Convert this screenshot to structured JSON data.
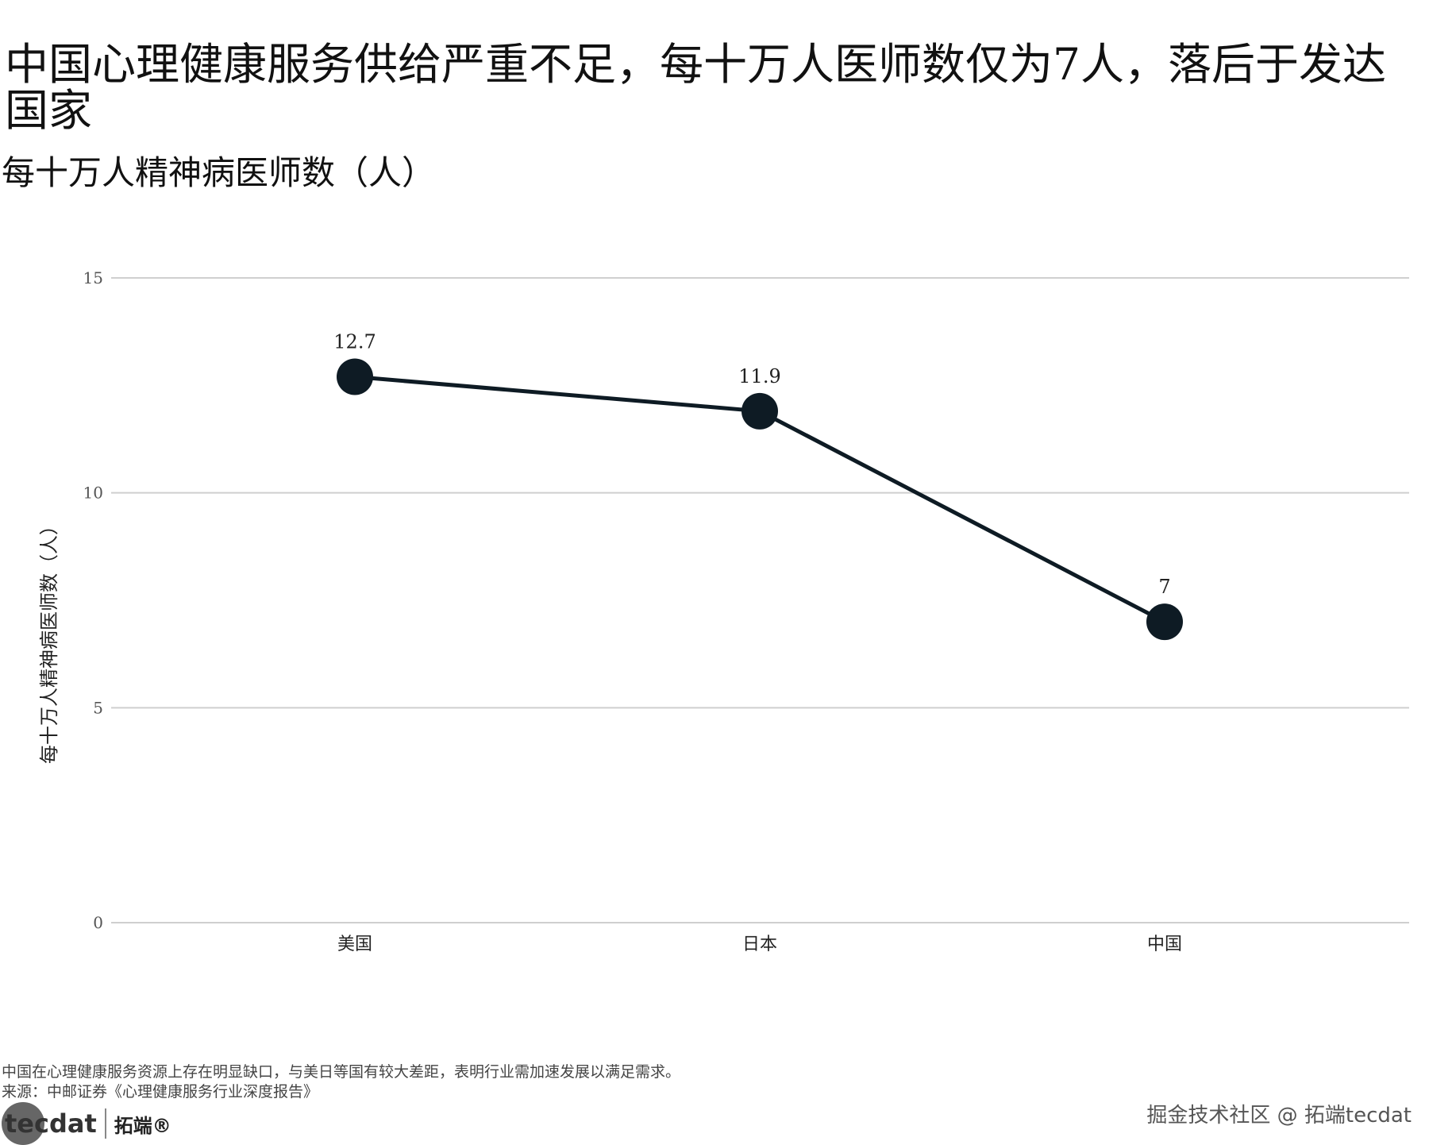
{
  "title": "中国心理健康服务供给严重不足，每十万人医师数仅为7人，落后于发达国家",
  "subtitle": "每十万人精神病医师数（人）",
  "chart_data": {
    "type": "line",
    "categories": [
      "美国",
      "日本",
      "中国"
    ],
    "values": [
      12.7,
      11.9,
      7
    ],
    "data_labels": [
      "12.7",
      "11.9",
      "7"
    ],
    "ylabel": "每十万人精神病医师数（人）",
    "xlabel": "",
    "ylim": [
      0,
      15
    ],
    "yticks": [
      "0",
      "5",
      "10",
      "15"
    ],
    "grid": "horizontal",
    "colors": {
      "line": "#0e1b24",
      "grid": "#cfcfcf"
    }
  },
  "footer": {
    "note": "中国在心理健康服务资源上存在明显缺口，与美日等国有较大差距，表明行业需加速发展以满足需求。",
    "source": "来源：中邮证券《心理健康服务行业深度报告》"
  },
  "logo": {
    "brand_en": "tecdat",
    "brand_cn": "拓端®"
  },
  "watermark": "掘金技术社区 @ 拓端tecdat"
}
